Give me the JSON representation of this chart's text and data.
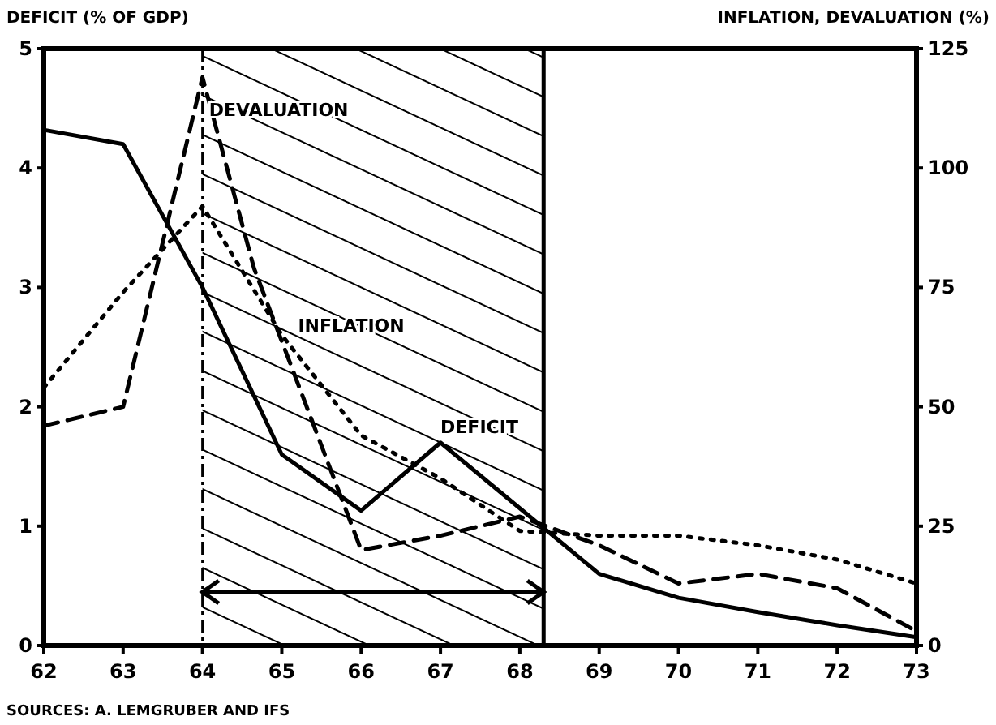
{
  "chart_data": {
    "type": "line",
    "ylabel": "DEFICIT (% OF GDP)",
    "y2label": "INFLATION, DEVALUATION (%)",
    "x": [
      62,
      63,
      64,
      65,
      66,
      67,
      68,
      69,
      70,
      71,
      72,
      73
    ],
    "xlim": [
      62,
      73
    ],
    "xticks": [
      62,
      63,
      64,
      65,
      66,
      67,
      68,
      69,
      70,
      71,
      72,
      73
    ],
    "ylim": [
      0,
      5
    ],
    "yticks": [
      0,
      1,
      2,
      3,
      4,
      5
    ],
    "y2lim": [
      0,
      125
    ],
    "y2ticks": [
      0,
      25,
      50,
      75,
      100,
      125
    ],
    "marker": "none",
    "series": [
      {
        "name": "DEFICIT",
        "color": "#000000",
        "line_style": "solid",
        "values": [
          4.32,
          4.2,
          3.0,
          1.6,
          1.13,
          1.7,
          1.15,
          0.6,
          0.4,
          0.28,
          0.17,
          0.07
        ]
      },
      {
        "name": "DEVALUATION",
        "color": "#000000",
        "line_style": "dashed",
        "axis": "y2",
        "x": [
          62,
          63,
          64,
          64.65,
          66,
          67,
          68,
          69,
          70,
          71,
          72,
          73
        ],
        "values": [
          46,
          50,
          119,
          79,
          20,
          23,
          27,
          21,
          13,
          15,
          12,
          3
        ]
      },
      {
        "name": "INFLATION",
        "color": "#000000",
        "line_style": "dotted",
        "axis": "y2",
        "values": [
          54,
          74,
          92,
          65,
          44,
          35,
          24,
          23,
          23,
          21,
          18,
          13
        ]
      }
    ],
    "bands": [
      {
        "axis": "x",
        "from": 64,
        "to": 68.3
      }
    ],
    "ref_lines": [
      {
        "axis": "x",
        "value": 64,
        "line_style": "dashdot"
      },
      {
        "axis": "x",
        "value": 68.3,
        "line_style": "solid"
      }
    ],
    "annotations": [
      "SOURCES: A. LEMGRUBER AND IFS"
    ]
  }
}
